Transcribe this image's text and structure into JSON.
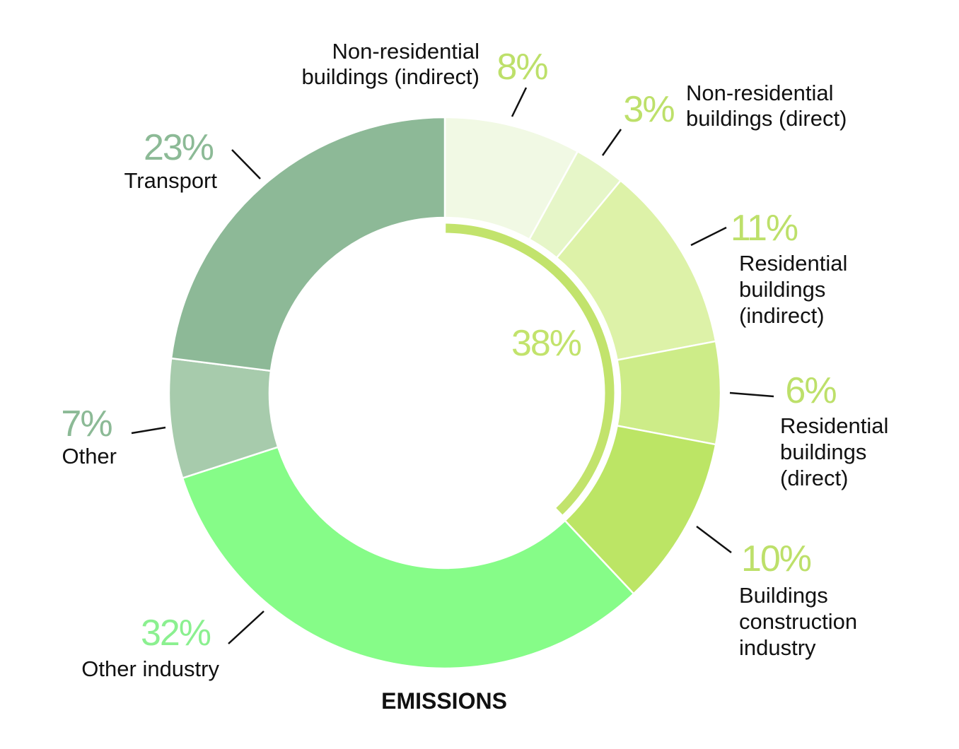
{
  "chart_data": {
    "type": "pie",
    "title": "EMISSIONS",
    "center_label": "38%",
    "center_label_color": "#c2e36c",
    "slices": [
      {
        "id": "nonres-indirect",
        "label": "Non-residential buildings (indirect)",
        "label_lines": [
          "Non-residential",
          "buildings (indirect)"
        ],
        "value": 8,
        "value_label": "8%",
        "color": "#f1f9e4",
        "label_color": "#bde06a"
      },
      {
        "id": "nonres-direct",
        "label": "Non-residential buildings (direct)",
        "label_lines": [
          "Non-residential",
          "buildings (direct)"
        ],
        "value": 3,
        "value_label": "3%",
        "color": "#e6f6c8",
        "label_color": "#bde06a"
      },
      {
        "id": "res-indirect",
        "label": "Residential buildings (indirect)",
        "label_lines": [
          "Residential",
          "buildings",
          "(indirect)"
        ],
        "value": 11,
        "value_label": "11%",
        "color": "#ddf2a8",
        "label_color": "#bde06a"
      },
      {
        "id": "res-direct",
        "label": "Residential buildings (direct)",
        "label_lines": [
          "Residential",
          "buildings",
          "(direct)"
        ],
        "value": 6,
        "value_label": "6%",
        "color": "#cdec88",
        "label_color": "#bde06a"
      },
      {
        "id": "construction",
        "label": "Buildings construction industry",
        "label_lines": [
          "Buildings",
          "construction",
          "industry"
        ],
        "value": 10,
        "value_label": "10%",
        "color": "#bce565",
        "label_color": "#bde06a"
      },
      {
        "id": "other-industry",
        "label": "Other industry",
        "label_lines": [
          "Other industry"
        ],
        "value": 32,
        "value_label": "32%",
        "color": "#86fc88",
        "label_color": "#8bf090"
      },
      {
        "id": "other",
        "label": "Other",
        "label_lines": [
          "Other"
        ],
        "value": 7,
        "value_label": "7%",
        "color": "#a7cbac",
        "label_color": "#8cba96"
      },
      {
        "id": "transport",
        "label": "Transport",
        "label_lines": [
          "Transport"
        ],
        "value": 23,
        "value_label": "23%",
        "color": "#8db997",
        "label_color": "#8cba96"
      }
    ]
  }
}
